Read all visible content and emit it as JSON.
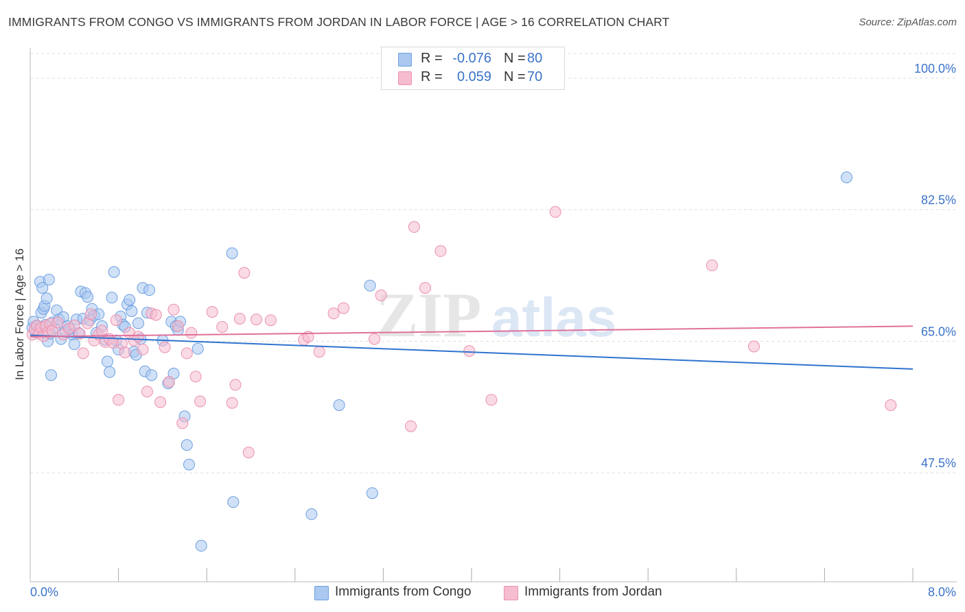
{
  "header": {
    "title": "IMMIGRANTS FROM CONGO VS IMMIGRANTS FROM JORDAN IN LABOR FORCE | AGE > 16 CORRELATION CHART",
    "source": "Source: ZipAtlas.com"
  },
  "legend": {
    "congo": {
      "r_label": "R =",
      "r_value": "-0.076",
      "n_label": "N =",
      "n_value": "80"
    },
    "jordan": {
      "r_label": "R =",
      "r_value": "0.059",
      "n_label": "N =",
      "n_value": "70"
    }
  },
  "colors": {
    "congo_fill": "#aac8f0",
    "congo_stroke": "#6c9fe0",
    "congo_line": "#2f73d0",
    "jordan_fill": "#f6bccf",
    "jordan_stroke": "#ea90ae",
    "jordan_line": "#e0709a",
    "tick_label": "#3b73c9",
    "grid": "#dddddd"
  },
  "watermark": {
    "zip": "ZIP",
    "atlas": "atlas"
  },
  "chart_data": {
    "type": "scatter",
    "title": "IMMIGRANTS FROM CONGO VS IMMIGRANTS FROM JORDAN IN LABOR FORCE | AGE > 16 CORRELATION CHART",
    "xlabel": "",
    "ylabel": "In Labor Force | Age > 16",
    "xlim": [
      0,
      8
    ],
    "ylim": [
      33,
      104
    ],
    "x_tick_labels": [
      "0.0%",
      "8.0%"
    ],
    "y_ticks": [
      100,
      82.5,
      65,
      47.5
    ],
    "y_tick_labels": [
      "100.0%",
      "82.5%",
      "65.0%",
      "47.5%"
    ],
    "grid": "horizontal dashed",
    "legend_position": "top-center",
    "series": [
      {
        "name": "Immigrants from Congo",
        "trend": [
          [
            0,
            65.8
          ],
          [
            8,
            61.3
          ]
        ],
        "points": [
          [
            0.02,
            66.8
          ],
          [
            0.03,
            67.6
          ],
          [
            0.05,
            66.2
          ],
          [
            0.06,
            67.0
          ],
          [
            0.08,
            66.5
          ],
          [
            0.1,
            68.8
          ],
          [
            0.12,
            69.3
          ],
          [
            0.14,
            67.2
          ],
          [
            0.16,
            65.0
          ],
          [
            0.18,
            66.0
          ],
          [
            0.2,
            67.5
          ],
          [
            0.22,
            66.8
          ],
          [
            0.24,
            69.1
          ],
          [
            0.26,
            67.9
          ],
          [
            0.28,
            65.3
          ],
          [
            0.3,
            68.2
          ],
          [
            0.32,
            66.3
          ],
          [
            0.34,
            67.0
          ],
          [
            0.36,
            66.6
          ],
          [
            0.38,
            65.9
          ],
          [
            0.4,
            64.6
          ],
          [
            0.42,
            67.9
          ],
          [
            0.44,
            66.1
          ],
          [
            0.46,
            71.6
          ],
          [
            0.48,
            68.0
          ],
          [
            0.5,
            71.4
          ],
          [
            0.52,
            70.9
          ],
          [
            0.54,
            67.8
          ],
          [
            0.56,
            69.3
          ],
          [
            0.58,
            68.4
          ],
          [
            0.6,
            66.1
          ],
          [
            0.62,
            68.6
          ],
          [
            0.65,
            67.0
          ],
          [
            0.68,
            65.2
          ],
          [
            0.7,
            62.3
          ],
          [
            0.72,
            60.9
          ],
          [
            0.74,
            70.8
          ],
          [
            0.76,
            74.2
          ],
          [
            0.78,
            65.1
          ],
          [
            0.8,
            63.9
          ],
          [
            0.82,
            68.3
          ],
          [
            0.84,
            67.2
          ],
          [
            0.86,
            66.9
          ],
          [
            0.88,
            69.9
          ],
          [
            0.9,
            70.5
          ],
          [
            0.92,
            69.0
          ],
          [
            0.94,
            63.6
          ],
          [
            0.96,
            63.2
          ],
          [
            0.98,
            67.4
          ],
          [
            1.0,
            65.3
          ],
          [
            1.02,
            72.1
          ],
          [
            1.04,
            61.0
          ],
          [
            1.06,
            68.8
          ],
          [
            1.08,
            71.8
          ],
          [
            1.1,
            60.5
          ],
          [
            1.2,
            65.1
          ],
          [
            1.25,
            59.4
          ],
          [
            1.28,
            67.6
          ],
          [
            1.3,
            60.7
          ],
          [
            1.32,
            67.0
          ],
          [
            1.34,
            66.5
          ],
          [
            1.36,
            67.6
          ],
          [
            1.4,
            55.0
          ],
          [
            1.42,
            51.2
          ],
          [
            1.44,
            48.6
          ],
          [
            1.52,
            64.0
          ],
          [
            1.55,
            37.8
          ],
          [
            1.83,
            76.7
          ],
          [
            1.84,
            43.6
          ],
          [
            2.55,
            42.0
          ],
          [
            2.8,
            56.5
          ],
          [
            3.08,
            72.4
          ],
          [
            3.1,
            44.8
          ],
          [
            0.09,
            72.9
          ],
          [
            0.11,
            72.1
          ],
          [
            0.13,
            69.7
          ],
          [
            0.15,
            70.7
          ],
          [
            0.17,
            73.2
          ],
          [
            0.19,
            60.5
          ],
          [
            7.4,
            86.8
          ]
        ]
      },
      {
        "name": "Immigrants from Jordan",
        "trend": [
          [
            0,
            65.6
          ],
          [
            8,
            67.0
          ]
        ],
        "points": [
          [
            0.02,
            65.9
          ],
          [
            0.04,
            66.6
          ],
          [
            0.06,
            67.1
          ],
          [
            0.08,
            66.0
          ],
          [
            0.1,
            66.8
          ],
          [
            0.12,
            65.7
          ],
          [
            0.14,
            67.0
          ],
          [
            0.16,
            66.2
          ],
          [
            0.18,
            67.3
          ],
          [
            0.2,
            66.4
          ],
          [
            0.25,
            67.5
          ],
          [
            0.3,
            65.9
          ],
          [
            0.35,
            66.7
          ],
          [
            0.4,
            67.1
          ],
          [
            0.45,
            66.0
          ],
          [
            0.48,
            63.4
          ],
          [
            0.52,
            67.4
          ],
          [
            0.55,
            68.6
          ],
          [
            0.58,
            65.1
          ],
          [
            0.62,
            65.9
          ],
          [
            0.65,
            66.4
          ],
          [
            0.68,
            64.9
          ],
          [
            0.72,
            65.3
          ],
          [
            0.75,
            64.8
          ],
          [
            0.78,
            67.8
          ],
          [
            0.8,
            57.2
          ],
          [
            0.83,
            64.7
          ],
          [
            0.86,
            63.5
          ],
          [
            0.9,
            66.1
          ],
          [
            0.94,
            65.1
          ],
          [
            0.98,
            65.6
          ],
          [
            1.02,
            63.9
          ],
          [
            1.06,
            58.3
          ],
          [
            1.1,
            68.7
          ],
          [
            1.14,
            68.5
          ],
          [
            1.18,
            56.9
          ],
          [
            1.22,
            64.2
          ],
          [
            1.26,
            59.6
          ],
          [
            1.3,
            69.2
          ],
          [
            1.34,
            67.0
          ],
          [
            1.38,
            54.1
          ],
          [
            1.42,
            63.4
          ],
          [
            1.46,
            66.1
          ],
          [
            1.5,
            60.3
          ],
          [
            1.54,
            57.0
          ],
          [
            1.65,
            68.9
          ],
          [
            1.74,
            66.9
          ],
          [
            1.83,
            56.8
          ],
          [
            1.86,
            59.2
          ],
          [
            1.9,
            68.0
          ],
          [
            1.94,
            74.1
          ],
          [
            1.98,
            50.2
          ],
          [
            2.05,
            67.9
          ],
          [
            2.18,
            67.8
          ],
          [
            2.48,
            65.2
          ],
          [
            2.52,
            65.6
          ],
          [
            2.62,
            63.6
          ],
          [
            2.75,
            68.7
          ],
          [
            2.84,
            69.4
          ],
          [
            3.12,
            65.3
          ],
          [
            3.18,
            71.1
          ],
          [
            3.45,
            53.7
          ],
          [
            3.48,
            80.2
          ],
          [
            3.58,
            72.1
          ],
          [
            3.72,
            77.0
          ],
          [
            3.98,
            63.7
          ],
          [
            4.18,
            57.2
          ],
          [
            4.76,
            82.2
          ],
          [
            6.18,
            75.1
          ],
          [
            6.56,
            64.3
          ],
          [
            7.8,
            56.5
          ]
        ]
      }
    ]
  },
  "bottom_legend": {
    "congo_label": "Immigrants from Congo",
    "jordan_label": "Immigrants from Jordan"
  }
}
